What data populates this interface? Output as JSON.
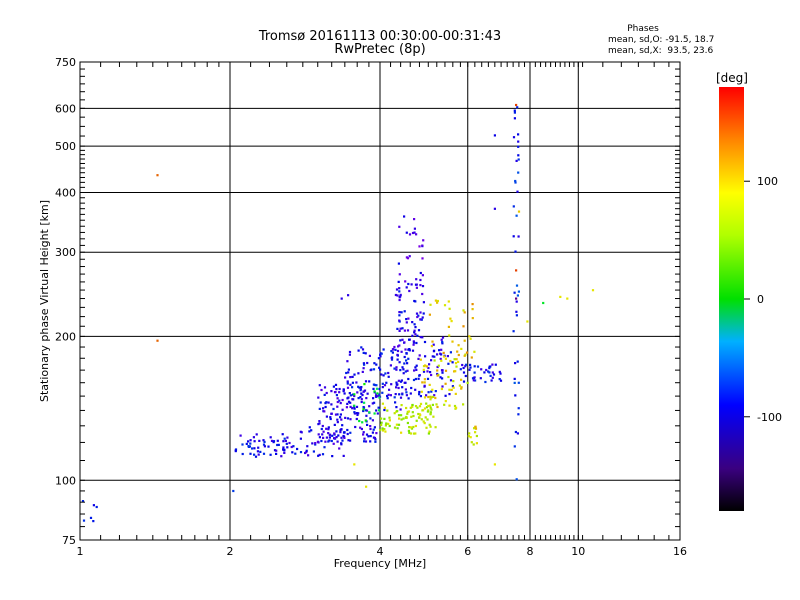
{
  "chart_data": {
    "type": "scatter",
    "title": "Tromsø 20161113 00:30:00-00:31:43",
    "subtitle": "RwPretec (8p)",
    "xlabel": "Frequency [MHz]",
    "ylabel": "Stationary phase Virtual Height [km]",
    "x_scale": "log",
    "y_scale": "log",
    "xlim": [
      1,
      16
    ],
    "ylim": [
      75,
      750
    ],
    "x_ticks": [
      1,
      2,
      4,
      6,
      8,
      10,
      16
    ],
    "y_ticks": [
      75,
      100,
      200,
      300,
      400,
      500,
      600,
      750
    ],
    "x_grid": [
      1,
      2,
      4,
      6,
      8,
      10,
      16
    ],
    "y_grid": [
      100,
      200,
      300,
      400,
      500,
      600
    ],
    "grid": true,
    "legend": {
      "title": "Phases",
      "lines": [
        "mean, sd,O: -91.5, 18.7",
        "mean, sd,X:  93.5, 23.6"
      ]
    },
    "colorbar": {
      "label": "[deg]",
      "range": [
        -180,
        180
      ],
      "ticks": [
        100,
        0,
        -100
      ]
    },
    "clusters": [
      {
        "x": [
          1.0,
          1.08
        ],
        "y": [
          80,
          92
        ],
        "phase": -95,
        "n": 6
      },
      {
        "x": [
          2.05,
          2.7
        ],
        "y": [
          112,
          125
        ],
        "phase": -100,
        "n": 60
      },
      {
        "x": [
          2.7,
          3.4
        ],
        "y": [
          112,
          130
        ],
        "phase": -105,
        "n": 50
      },
      {
        "x": [
          3.0,
          4.0
        ],
        "y": [
          120,
          160
        ],
        "phase": -105,
        "n": 160
      },
      {
        "x": [
          3.4,
          4.6
        ],
        "y": [
          140,
          190
        ],
        "phase": -100,
        "n": 110
      },
      {
        "x": [
          4.2,
          5.6
        ],
        "y": [
          150,
          200
        ],
        "phase": -105,
        "n": 110
      },
      {
        "x": [
          4.3,
          4.9
        ],
        "y": [
          200,
          260
        ],
        "phase": -105,
        "n": 55
      },
      {
        "x": [
          4.3,
          4.9
        ],
        "y": [
          260,
          360
        ],
        "phase": -115,
        "n": 25
      },
      {
        "x": [
          4.0,
          5.2
        ],
        "y": [
          125,
          145
        ],
        "phase": 95,
        "n": 90
      },
      {
        "x": [
          4.8,
          6.0
        ],
        "y": [
          140,
          180
        ],
        "phase": 110,
        "n": 60
      },
      {
        "x": [
          5.0,
          6.2
        ],
        "y": [
          180,
          240
        ],
        "phase": 120,
        "n": 35
      },
      {
        "x": [
          5.8,
          7.0
        ],
        "y": [
          160,
          175
        ],
        "phase": -100,
        "n": 40
      },
      {
        "x": [
          7.4,
          7.6
        ],
        "y": [
          100,
          620
        ],
        "phase": -90,
        "n": 40
      },
      {
        "x": [
          3.5,
          4.0
        ],
        "y": [
          120,
          160
        ],
        "phase": 30,
        "n": 15
      },
      {
        "x": [
          6.0,
          6.3
        ],
        "y": [
          118,
          130
        ],
        "phase": 110,
        "n": 12
      }
    ],
    "points": [
      {
        "x": 1.43,
        "y": 435,
        "phase": 150
      },
      {
        "x": 1.43,
        "y": 196,
        "phase": 150
      },
      {
        "x": 2.03,
        "y": 95,
        "phase": -80
      },
      {
        "x": 3.35,
        "y": 240,
        "phase": -110
      },
      {
        "x": 3.45,
        "y": 244,
        "phase": -110
      },
      {
        "x": 3.75,
        "y": 97,
        "phase": 110
      },
      {
        "x": 3.55,
        "y": 108,
        "phase": 110
      },
      {
        "x": 6.8,
        "y": 527,
        "phase": -100
      },
      {
        "x": 6.8,
        "y": 370,
        "phase": -110
      },
      {
        "x": 6.8,
        "y": 108,
        "phase": 110
      },
      {
        "x": 7.6,
        "y": 365,
        "phase": 120
      },
      {
        "x": 7.9,
        "y": 215,
        "phase": 110
      },
      {
        "x": 8.5,
        "y": 235,
        "phase": 30
      },
      {
        "x": 9.2,
        "y": 242,
        "phase": 110
      },
      {
        "x": 9.5,
        "y": 240,
        "phase": 110
      },
      {
        "x": 10.7,
        "y": 250,
        "phase": 110
      },
      {
        "x": 7.5,
        "y": 610,
        "phase": 160
      },
      {
        "x": 7.5,
        "y": 240,
        "phase": -150
      },
      {
        "x": 7.5,
        "y": 275,
        "phase": 160
      }
    ]
  }
}
